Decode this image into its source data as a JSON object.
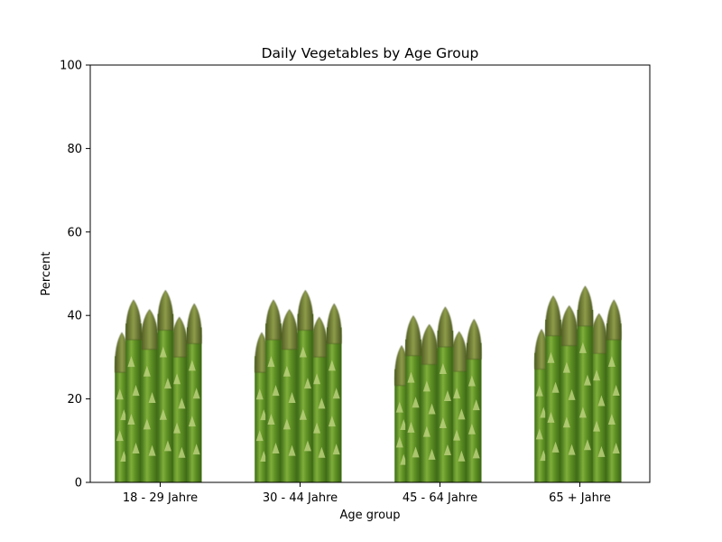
{
  "chart_data": {
    "type": "bar",
    "title": "Daily Vegetables by Age Group",
    "xlabel": "Age group",
    "ylabel": "Percent",
    "categories": [
      "18 - 29 Jahre",
      "30 - 44 Jahre",
      "45 - 64 Jahre",
      "65 + Jahre"
    ],
    "values": [
      46,
      46,
      42,
      47
    ],
    "ylim": [
      0,
      100
    ],
    "yticks": [
      0,
      20,
      40,
      60,
      80,
      100
    ],
    "grid": false,
    "legend": "none",
    "bar_style": "asparagus-image",
    "colors": {
      "stalk_dark": "#4a7a1e",
      "stalk_mid": "#6a9a2a",
      "stalk_light": "#9cc45a",
      "tip": "#7a8a3a",
      "tip_dark": "#4e5a22",
      "scale": "#b8cf7a"
    }
  }
}
